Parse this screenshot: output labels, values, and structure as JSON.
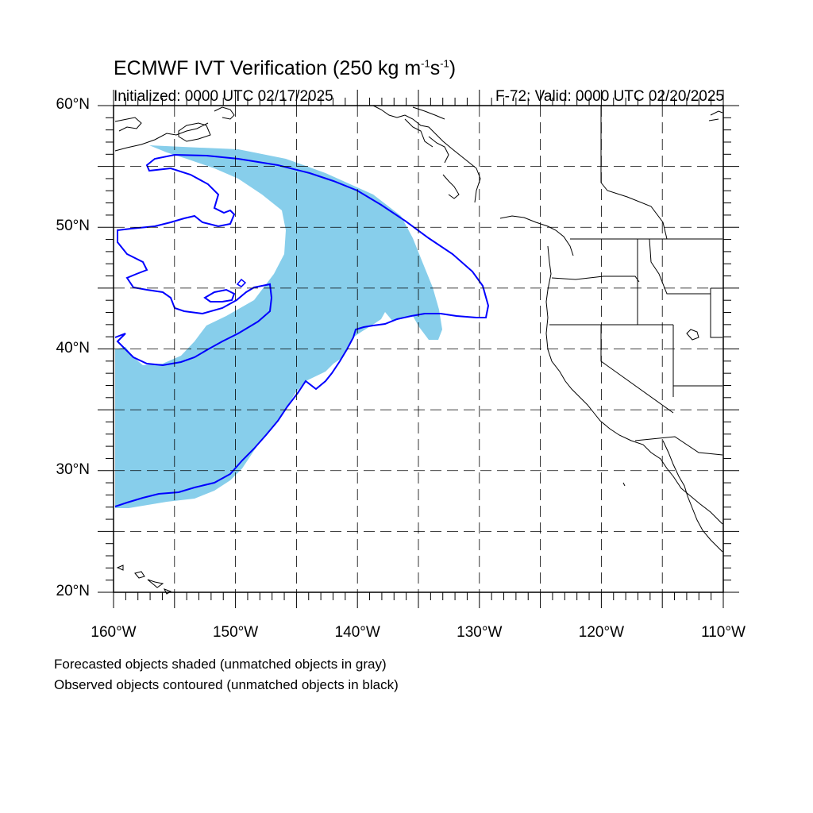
{
  "title": {
    "prefix": "ECMWF IVT Verification (250 kg m",
    "sup1": "-1",
    "mid": "s",
    "sup2": "-1",
    "suffix": ")"
  },
  "subtitle": {
    "initialized": "Initialized: 0000 UTC 02/17/2025",
    "valid": "F-72: Valid: 0000 UTC 02/20/2025"
  },
  "map": {
    "lon_range": [
      -160,
      -110
    ],
    "lat_range": [
      20,
      60
    ],
    "lat_labels": [
      {
        "lat": 60,
        "text": "60°N"
      },
      {
        "lat": 50,
        "text": "50°N"
      },
      {
        "lat": 40,
        "text": "40°N"
      },
      {
        "lat": 30,
        "text": "30°N"
      },
      {
        "lat": 20,
        "text": "20°N"
      }
    ],
    "lon_labels": [
      {
        "lon": -160,
        "text": "160°W"
      },
      {
        "lon": -150,
        "text": "150°W"
      },
      {
        "lon": -140,
        "text": "140°W"
      },
      {
        "lon": -130,
        "text": "130°W"
      },
      {
        "lon": -120,
        "text": "120°W"
      },
      {
        "lon": -110,
        "text": "110°W"
      }
    ],
    "grid_lons": [
      -155,
      -150,
      -145,
      -140,
      -135,
      -130,
      -125,
      -120,
      -115
    ],
    "grid_lats": [
      25,
      30,
      35,
      40,
      45,
      50,
      55
    ],
    "colors": {
      "forecast_fill": "#87ceeb",
      "observed_contour": "#0000ff",
      "coastline": "#000000",
      "grid": "#000000"
    }
  },
  "legend": {
    "line1": "Forecasted objects shaded (unmatched objects in gray)",
    "line2": "Observed objects contoured (unmatched objects in black)"
  }
}
